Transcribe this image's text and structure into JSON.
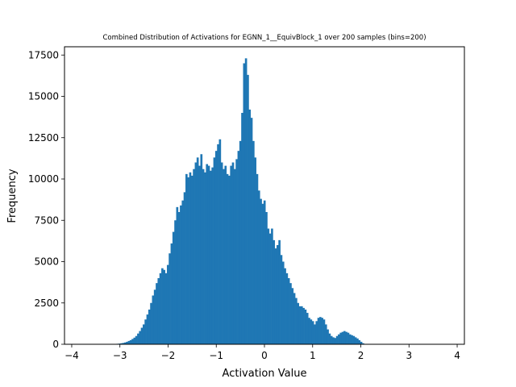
{
  "chart_data": {
    "type": "bar",
    "title": "Combined Distribution of Activations for EGNN_1__EquivBlock_1 over 200 samples  (bins=200)",
    "xlabel": "Activation Value",
    "ylabel": "Frequency",
    "xlim": [
      -4.15,
      4.15
    ],
    "ylim": [
      0,
      18000
    ],
    "xticks": [
      -4,
      -3,
      -2,
      -1,
      0,
      1,
      2,
      3,
      4
    ],
    "yticks": [
      0,
      2500,
      5000,
      7500,
      10000,
      12500,
      15000,
      17500
    ],
    "bins": 200,
    "bin_range": [
      -3.8,
      3.8
    ],
    "bar_color": "#1f77b4",
    "grid": false,
    "series": [
      {
        "values": [
          0,
          0,
          0,
          0,
          0,
          0,
          0,
          0,
          0,
          0,
          0,
          0,
          0,
          0,
          0,
          0,
          5,
          10,
          15,
          30,
          40,
          60,
          80,
          110,
          150,
          200,
          250,
          320,
          400,
          500,
          650,
          800,
          1000,
          1200,
          1500,
          1800,
          2100,
          2500,
          2950,
          3300,
          3700,
          4000,
          4300,
          4600,
          4500,
          4300,
          4800,
          5500,
          6100,
          6800,
          7500,
          8300,
          8000,
          8400,
          8700,
          9200,
          10300,
          10100,
          10400,
          10200,
          10600,
          11000,
          11300,
          10800,
          11500,
          10600,
          10400,
          10900,
          10800,
          10500,
          10700,
          11300,
          11700,
          12100,
          12400,
          11000,
          10600,
          10800,
          10300,
          10200,
          10800,
          11000,
          10600,
          11200,
          11700,
          12300,
          14000,
          17000,
          17300,
          16300,
          14200,
          13700,
          12300,
          11300,
          10300,
          9300,
          8800,
          8500,
          8700,
          8000,
          7000,
          6700,
          7000,
          6300,
          5800,
          6000,
          6300,
          5400,
          5000,
          4600,
          4300,
          4000,
          3700,
          3400,
          3100,
          2800,
          2500,
          2300,
          2300,
          2200,
          2100,
          1900,
          1600,
          1500,
          1400,
          1200,
          1400,
          1600,
          1650,
          1600,
          1500,
          1200,
          900,
          650,
          500,
          420,
          380,
          500,
          600,
          700,
          750,
          800,
          750,
          700,
          600,
          550,
          500,
          420,
          350,
          250,
          150,
          60,
          10,
          0,
          0,
          0,
          0,
          0,
          0,
          0,
          0,
          0,
          0,
          0,
          0,
          0,
          0,
          0,
          0,
          0,
          0,
          0,
          0,
          0,
          0,
          0,
          0,
          0,
          0,
          0,
          0,
          0,
          0,
          0,
          0,
          0,
          0,
          0,
          0,
          0,
          0,
          0,
          0,
          0,
          0,
          0,
          0
        ]
      }
    ]
  }
}
